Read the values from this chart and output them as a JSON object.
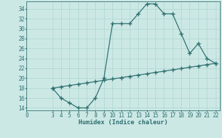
{
  "xlabel": "Humidex (Indice chaleur)",
  "bg_color": "#cce8e5",
  "line_color": "#2d6e6e",
  "grid_color": "#b0d8d4",
  "xlim": [
    0,
    22.5
  ],
  "ylim": [
    13.5,
    35.5
  ],
  "yticks": [
    14,
    16,
    18,
    20,
    22,
    24,
    26,
    28,
    30,
    32,
    34
  ],
  "xticks": [
    0,
    3,
    4,
    5,
    6,
    7,
    8,
    9,
    10,
    11,
    12,
    13,
    14,
    15,
    16,
    17,
    18,
    19,
    20,
    21,
    22
  ],
  "curve1_x": [
    3,
    4,
    5,
    6,
    7,
    8,
    9,
    10,
    11,
    12,
    13,
    14,
    15,
    16,
    17,
    18,
    19,
    20,
    21,
    22
  ],
  "curve1_y": [
    18,
    16,
    15,
    14,
    14,
    16,
    20,
    31,
    31,
    31,
    33,
    35,
    35,
    33,
    33,
    29,
    25,
    27,
    24,
    23
  ],
  "curve2_x": [
    3,
    4,
    5,
    6,
    7,
    8,
    9,
    10,
    11,
    12,
    13,
    14,
    15,
    16,
    17,
    18,
    19,
    20,
    21,
    22
  ],
  "curve2_y": [
    18,
    18.26,
    18.53,
    18.79,
    19.05,
    19.32,
    19.58,
    19.84,
    20.11,
    20.37,
    20.63,
    20.89,
    21.16,
    21.42,
    21.68,
    21.95,
    22.21,
    22.47,
    22.74,
    23.0
  ],
  "marker": "+",
  "markersize": 4,
  "markeredgewidth": 1.0,
  "linewidth": 0.9,
  "tick_fontsize": 5.5,
  "xlabel_fontsize": 6.5
}
